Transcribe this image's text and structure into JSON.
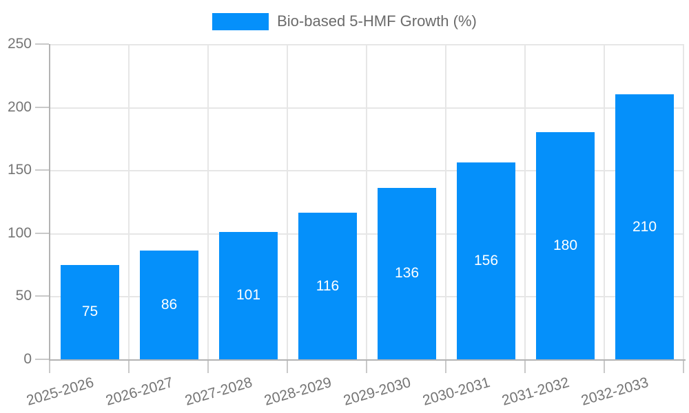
{
  "colors": {
    "bar": "#0590fa",
    "axis": "#b3b3b3",
    "grid": "#e6e6e6",
    "tick": "#c9c9c9",
    "axis_text": "#757575",
    "legend_text": "#6b6b6b",
    "bar_label": "#ffffff",
    "background": "#ffffff"
  },
  "chart_data": {
    "type": "bar",
    "title": "",
    "xlabel": "",
    "ylabel": "",
    "categories": [
      "2025-2026",
      "2026-2027",
      "2027-2028",
      "2028-2029",
      "2029-2030",
      "2030-2031",
      "2031-2032",
      "2032-2033"
    ],
    "series": [
      {
        "name": "Bio-based 5-HMF Growth (%)",
        "values": [
          75,
          86,
          101,
          116,
          136,
          156,
          180,
          210
        ]
      }
    ],
    "ylim": [
      0,
      250
    ],
    "yticks": [
      0,
      50,
      100,
      150,
      200,
      250
    ],
    "grid": true,
    "legend_position": "top-center",
    "bar_labels_inside": true,
    "x_label_rotation_deg": -16
  }
}
